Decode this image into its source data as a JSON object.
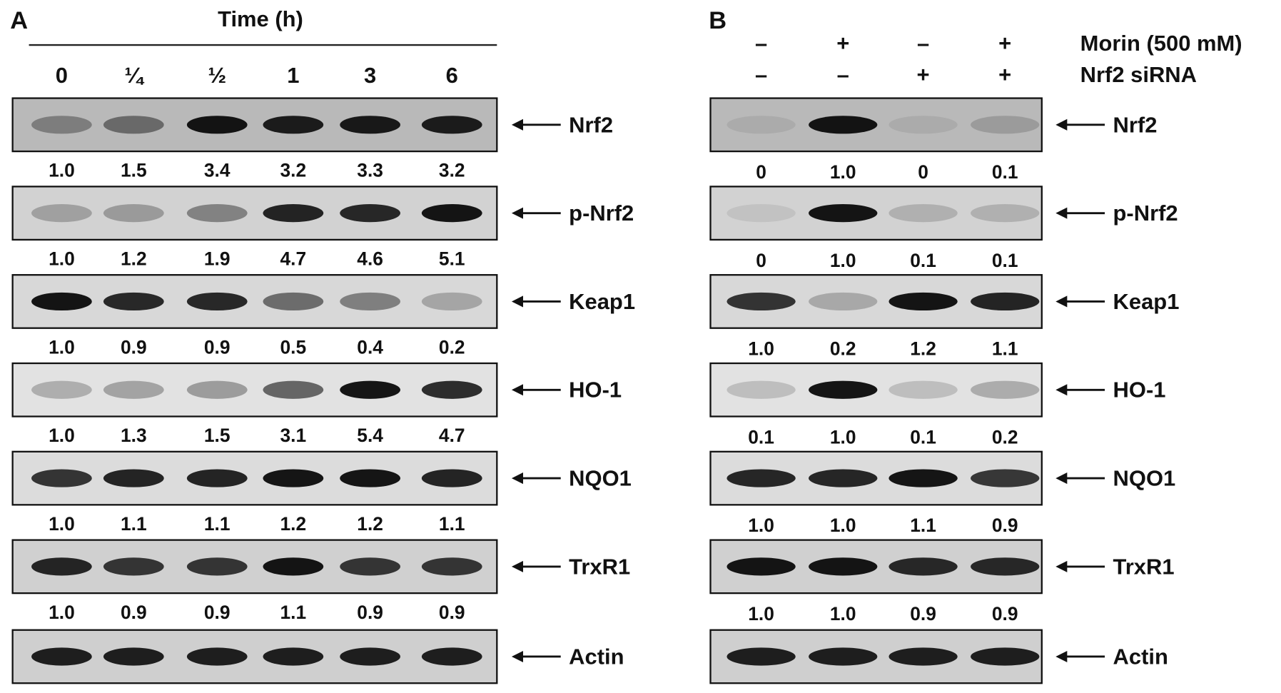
{
  "panel_a": {
    "label": "A",
    "title": "Time (h)",
    "columns": [
      "0",
      "¼",
      "½",
      "1",
      "3",
      "6"
    ],
    "blots": [
      {
        "name": "Nrf2",
        "values": [
          "1.0",
          "1.5",
          "3.4",
          "3.2",
          "3.3",
          "3.2"
        ]
      },
      {
        "name": "p-Nrf2",
        "values": [
          "1.0",
          "1.2",
          "1.9",
          "4.7",
          "4.6",
          "5.1"
        ]
      },
      {
        "name": "Keap1",
        "values": [
          "1.0",
          "0.9",
          "0.9",
          "0.5",
          "0.4",
          "0.2"
        ]
      },
      {
        "name": "HO-1",
        "values": [
          "1.0",
          "1.3",
          "1.5",
          "3.1",
          "5.4",
          "4.7"
        ]
      },
      {
        "name": "NQO1",
        "values": [
          "1.0",
          "1.1",
          "1.1",
          "1.2",
          "1.2",
          "1.1"
        ]
      },
      {
        "name": "TrxR1",
        "values": [
          "1.0",
          "0.9",
          "0.9",
          "1.1",
          "0.9",
          "0.9"
        ]
      },
      {
        "name": "Actin"
      }
    ]
  },
  "panel_b": {
    "label": "B",
    "treatments": [
      {
        "name": "Morin (500 mM)",
        "signs": [
          "–",
          "+",
          "–",
          "+"
        ]
      },
      {
        "name": "Nrf2 siRNA",
        "signs": [
          "–",
          "–",
          "+",
          "+"
        ]
      }
    ],
    "blots": [
      {
        "name": "Nrf2",
        "values": [
          "0",
          "1.0",
          "0",
          "0.1"
        ]
      },
      {
        "name": "p-Nrf2",
        "values": [
          "0",
          "1.0",
          "0.1",
          "0.1"
        ]
      },
      {
        "name": "Keap1",
        "values": [
          "1.0",
          "0.2",
          "1.2",
          "1.1"
        ]
      },
      {
        "name": "HO-1",
        "values": [
          "0.1",
          "1.0",
          "0.1",
          "0.2"
        ]
      },
      {
        "name": "NQO1",
        "values": [
          "1.0",
          "1.0",
          "1.1",
          "0.9"
        ]
      },
      {
        "name": "TrxR1",
        "values": [
          "1.0",
          "1.0",
          "0.9",
          "0.9"
        ]
      },
      {
        "name": "Actin"
      }
    ]
  }
}
